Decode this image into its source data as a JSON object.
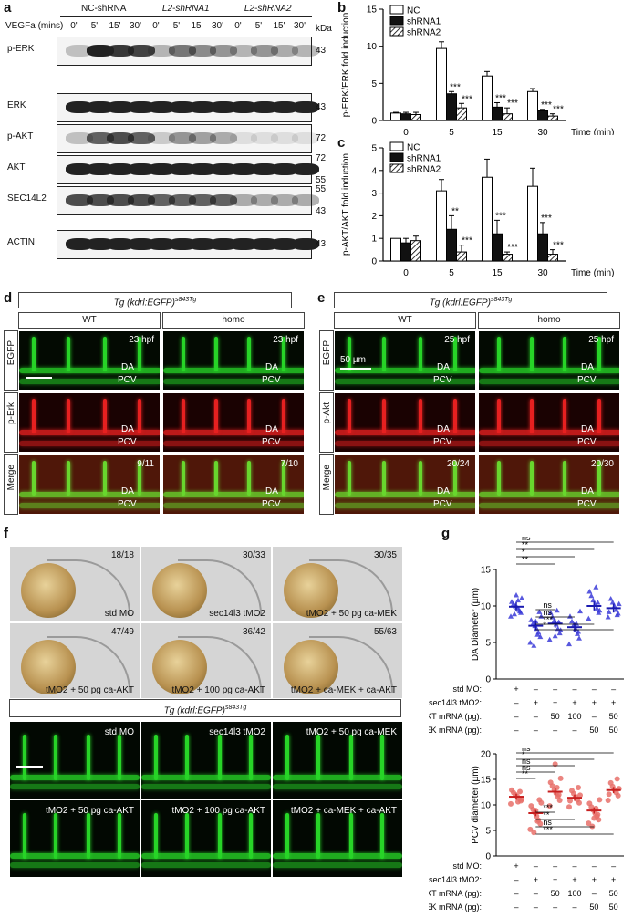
{
  "panels": {
    "a": "a",
    "b": "b",
    "c": "c",
    "d": "d",
    "e": "e",
    "f": "f",
    "g": "g"
  },
  "blot": {
    "groups": [
      "NC-shRNA",
      "L2-shRNA1",
      "L2-shRNA2"
    ],
    "vegfa_label": "VEGFa (mins)",
    "times": [
      "0'",
      "5'",
      "15'",
      "30'",
      "0'",
      "5'",
      "15'",
      "30'",
      "0'",
      "5'",
      "15'",
      "30'"
    ],
    "kda": "kDa",
    "rows": [
      {
        "label": "p-ERK",
        "markers": [
          "43"
        ]
      },
      {
        "label": "ERK",
        "markers": [
          "43"
        ]
      },
      {
        "label": "p-AKT",
        "markers": [
          "72"
        ]
      },
      {
        "label": "AKT",
        "markers": [
          "72",
          "55"
        ]
      },
      {
        "label": "SEC14L2",
        "markers": [
          "55",
          "43"
        ]
      },
      {
        "label": "ACTIN",
        "markers": [
          "43"
        ]
      }
    ]
  },
  "chart_data": [
    {
      "type": "bar",
      "panel": "b",
      "ylabel": "p-ERK/ERK fold induction",
      "xlabel": "Time (min)",
      "categories": [
        "0",
        "5",
        "15",
        "30"
      ],
      "ylim": [
        0,
        15
      ],
      "yticks": [
        0,
        5,
        10,
        15
      ],
      "series": [
        {
          "name": "NC",
          "values": [
            1.0,
            9.7,
            6.0,
            3.9
          ],
          "errors": [
            0.1,
            0.9,
            0.6,
            0.4
          ]
        },
        {
          "name": "shRNA1",
          "values": [
            0.9,
            3.6,
            1.8,
            1.3
          ],
          "errors": [
            0.2,
            0.3,
            0.6,
            0.2
          ]
        },
        {
          "name": "shRNA2",
          "values": [
            0.8,
            1.7,
            0.9,
            0.6
          ],
          "errors": [
            0.3,
            0.6,
            0.8,
            0.3
          ]
        }
      ],
      "annotations": [
        "***",
        "***",
        "***",
        "***",
        "***",
        "***"
      ]
    },
    {
      "type": "bar",
      "panel": "c",
      "ylabel": "p-AKT/AKT fold induction",
      "xlabel": "Time (min)",
      "categories": [
        "0",
        "5",
        "15",
        "30"
      ],
      "ylim": [
        0,
        5
      ],
      "yticks": [
        0,
        1,
        2,
        3,
        4,
        5
      ],
      "series": [
        {
          "name": "NC",
          "values": [
            1.0,
            3.1,
            3.7,
            3.3
          ],
          "errors": [
            0.0,
            0.5,
            0.8,
            0.8
          ]
        },
        {
          "name": "shRNA1",
          "values": [
            0.8,
            1.4,
            1.2,
            1.2
          ],
          "errors": [
            0.2,
            0.6,
            0.6,
            0.5
          ]
        },
        {
          "name": "shRNA2",
          "values": [
            0.9,
            0.4,
            0.3,
            0.3
          ],
          "errors": [
            0.2,
            0.3,
            0.1,
            0.2
          ]
        }
      ],
      "annotations": [
        "**",
        "***",
        "***",
        "***",
        "***",
        "***"
      ]
    },
    {
      "type": "scatter",
      "panel": "g-top",
      "ylabel": "DA Diameter (µm)",
      "ylim": [
        0,
        15
      ],
      "yticks": [
        0,
        5,
        10,
        15
      ],
      "groups": [
        {
          "mean": 9.9,
          "points": [
            8.6,
            9.1,
            9.5,
            9.8,
            10.0,
            10.3,
            10.6,
            11.1,
            9.3,
            10.8,
            11.5,
            8.9
          ]
        },
        {
          "mean": 7.3,
          "points": [
            5.0,
            5.8,
            6.4,
            6.9,
            7.3,
            7.6,
            8.1,
            8.6,
            9.2,
            6.1,
            7.9,
            4.6
          ]
        },
        {
          "mean": 7.6,
          "points": [
            5.4,
            6.3,
            6.9,
            7.5,
            8.0,
            8.5,
            9.1,
            6.7,
            7.8,
            9.4,
            5.9
          ]
        },
        {
          "mean": 7.1,
          "points": [
            4.8,
            5.6,
            6.2,
            6.9,
            7.4,
            7.9,
            8.6,
            9.3,
            6.5,
            7.6
          ]
        },
        {
          "mean": 10.0,
          "points": [
            8.3,
            9.1,
            9.7,
            10.2,
            10.8,
            11.4,
            12.0,
            9.4,
            10.5,
            12.6
          ]
        },
        {
          "mean": 9.7,
          "points": [
            8.5,
            9.0,
            9.5,
            10.0,
            10.5,
            11.0,
            9.2,
            10.3,
            8.8
          ]
        }
      ],
      "significance": [
        {
          "pair": [
            0,
            5
          ],
          "label": "ns"
        },
        {
          "pair": [
            0,
            4
          ],
          "label": "**"
        },
        {
          "pair": [
            0,
            3
          ],
          "label": "*"
        },
        {
          "pair": [
            0,
            2
          ],
          "label": "**"
        },
        {
          "pair": [
            1,
            2
          ],
          "label": "ns"
        },
        {
          "pair": [
            1,
            3
          ],
          "label": "ns"
        },
        {
          "pair": [
            1,
            4
          ],
          "label": "***"
        },
        {
          "pair": [
            1,
            5
          ],
          "label": "*"
        }
      ],
      "conditions": {
        "rows": [
          "std MO:",
          "sec14l3 tMO2:",
          "ca-AKT mRNA (pg):",
          "ca-MEK mRNA (pg):"
        ],
        "values": [
          [
            "+",
            "–",
            "–",
            "–",
            "–",
            "–"
          ],
          [
            "–",
            "+",
            "+",
            "+",
            "+",
            "+"
          ],
          [
            "–",
            "–",
            "50",
            "100",
            "–",
            "50"
          ],
          [
            "–",
            "–",
            "–",
            "–",
            "50",
            "50"
          ]
        ]
      }
    },
    {
      "type": "scatter",
      "panel": "g-bottom",
      "ylabel": "PCV diameter (µm)",
      "ylim": [
        0,
        20
      ],
      "yticks": [
        0,
        5,
        10,
        15,
        20
      ],
      "groups": [
        {
          "mean": 11.6,
          "points": [
            10.2,
            10.8,
            11.3,
            11.7,
            12.0,
            12.4,
            12.9,
            11.1,
            12.6,
            10.6
          ]
        },
        {
          "mean": 8.4,
          "points": [
            5.2,
            6.3,
            7.0,
            7.8,
            8.5,
            9.1,
            9.8,
            10.4,
            11.0,
            6.8,
            8.9,
            4.6
          ]
        },
        {
          "mean": 12.6,
          "points": [
            9.8,
            10.9,
            11.6,
            12.3,
            13.0,
            13.7,
            14.4,
            15.2,
            12.0,
            13.4,
            18.0
          ]
        },
        {
          "mean": 11.4,
          "points": [
            9.6,
            10.4,
            11.0,
            11.6,
            12.2,
            12.8,
            10.8,
            11.9,
            13.4
          ]
        },
        {
          "mean": 8.9,
          "points": [
            6.4,
            7.1,
            7.8,
            8.4,
            9.0,
            9.6,
            10.3,
            11.0,
            8.1,
            9.3,
            7.4,
            5.8
          ]
        },
        {
          "mean": 12.9,
          "points": [
            10.9,
            11.8,
            12.4,
            13.0,
            13.6,
            14.3,
            12.1,
            13.2,
            15.1
          ]
        }
      ],
      "significance": [
        {
          "pair": [
            0,
            5
          ],
          "label": "ns"
        },
        {
          "pair": [
            0,
            4
          ],
          "label": "*"
        },
        {
          "pair": [
            0,
            3
          ],
          "label": "ns"
        },
        {
          "pair": [
            0,
            2
          ],
          "label": "ns"
        },
        {
          "pair": [
            0,
            1
          ],
          "label": "**"
        },
        {
          "pair": [
            1,
            2
          ],
          "label": "***"
        },
        {
          "pair": [
            1,
            3
          ],
          "label": "**"
        },
        {
          "pair": [
            1,
            4
          ],
          "label": "ns"
        },
        {
          "pair": [
            1,
            5
          ],
          "label": "***"
        }
      ],
      "conditions": {
        "rows": [
          "std MO:",
          "sec14l3 tMO2:",
          "ca-AKT mRNA (pg):",
          "ca-MEK mRNA (pg):"
        ],
        "values": [
          [
            "+",
            "–",
            "–",
            "–",
            "–",
            "–"
          ],
          [
            "–",
            "+",
            "+",
            "+",
            "+",
            "+"
          ],
          [
            "–",
            "–",
            "50",
            "100",
            "–",
            "50"
          ],
          [
            "–",
            "–",
            "–",
            "–",
            "50",
            "50"
          ]
        ]
      }
    }
  ],
  "d": {
    "title": "Tg (kdrl:EGFP)s843Tg",
    "cols": [
      "WT",
      "homo"
    ],
    "rows": [
      "EGFP",
      "p-Erk",
      "Merge"
    ],
    "hpf": [
      "23 hpf",
      "23 hpf"
    ],
    "ratios": [
      "9/11",
      "7/10"
    ],
    "da": "DA",
    "pcv": "PCV"
  },
  "e": {
    "title": "Tg (kdrl:EGFP)s843Tg",
    "cols": [
      "WT",
      "homo"
    ],
    "rows": [
      "EGFP",
      "p-Akt",
      "Merge"
    ],
    "hpf": [
      "25 hpf",
      "25 hpf"
    ],
    "ratios": [
      "20/24",
      "20/30"
    ],
    "scale": "50 µm",
    "da": "DA",
    "pcv": "PCV"
  },
  "f": {
    "embryos": [
      {
        "ratio": "18/18",
        "label": "std MO"
      },
      {
        "ratio": "30/33",
        "label": "sec14l3 tMO2"
      },
      {
        "ratio": "30/35",
        "label": "tMO2 + 50 pg ca-MEK"
      },
      {
        "ratio": "47/49",
        "label": "tMO2 + 50 pg ca-AKT"
      },
      {
        "ratio": "36/42",
        "label": "tMO2 + 100 pg ca-AKT"
      },
      {
        "ratio": "55/63",
        "label": "tMO2 + ca-MEK + ca-AKT"
      }
    ],
    "tg_title": "Tg (kdrl:EGFP)s843Tg",
    "fluor": [
      {
        "label": "std MO"
      },
      {
        "label": "sec14l3 tMO2"
      },
      {
        "label": "tMO2 + 50 pg ca-MEK"
      },
      {
        "label": "tMO2 + 50 pg ca-AKT"
      },
      {
        "label": "tMO2 + 100 pg ca-AKT"
      },
      {
        "label": "tMO2 + ca-MEK + ca-AKT"
      }
    ]
  },
  "colors": {
    "egfp": "#27d427",
    "red": "#e62020",
    "blue": "#3b3bd8",
    "pink": "#e8706a"
  }
}
